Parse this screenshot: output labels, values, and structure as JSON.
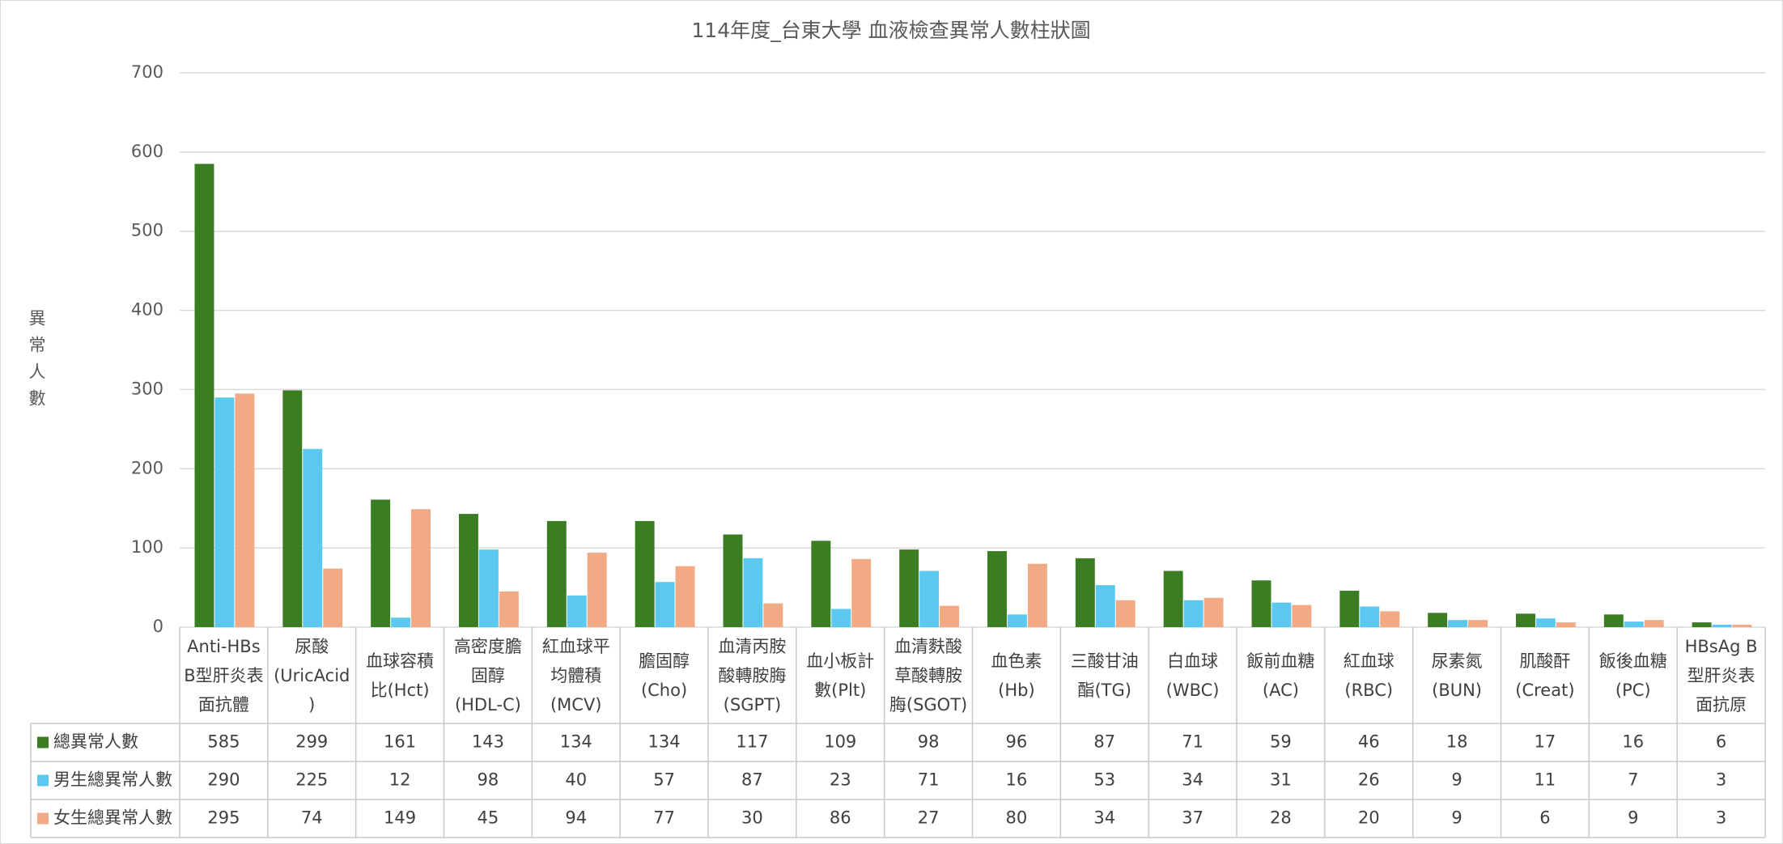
{
  "chart_data": {
    "type": "bar",
    "title": "114年度_台東大學 血液檢查異常人數柱狀圖",
    "y_label": "異常人數",
    "categories": [
      "Anti-HBs B型肝炎表面抗體",
      "尿酸(UricAcid)",
      "血球容積比(Hct)",
      "高密度膽固醇(HDL-C)",
      "紅血球平均體積(MCV)",
      "膽固醇(Cho)",
      "血清丙胺酸轉胺脢(SGPT)",
      "血小板計數(Plt)",
      "血清麩酸草酸轉胺脢(SGOT)",
      "血色素(Hb)",
      "三酸甘油酯(TG)",
      "白血球(WBC)",
      "飯前血糖(AC)",
      "紅血球(RBC)",
      "尿素氮(BUN)",
      "肌酸酐(Creat)",
      "飯後血糖(PC)",
      "HBsAg B型肝炎表面抗原"
    ],
    "series": [
      {
        "name": "總異常人數",
        "color": "#3a7d22",
        "values": [
          585,
          299,
          161,
          143,
          134,
          134,
          117,
          109,
          98,
          96,
          87,
          71,
          59,
          46,
          18,
          17,
          16,
          6
        ]
      },
      {
        "name": "男生總異常人數",
        "color": "#5bc8ef",
        "values": [
          290,
          225,
          12,
          98,
          40,
          57,
          87,
          23,
          71,
          16,
          53,
          34,
          31,
          26,
          9,
          11,
          7,
          3
        ]
      },
      {
        "name": "女生總異常人數",
        "color": "#f2aa84",
        "values": [
          295,
          74,
          149,
          45,
          94,
          77,
          30,
          86,
          27,
          80,
          34,
          37,
          28,
          20,
          9,
          6,
          9,
          3
        ]
      }
    ],
    "ylim": [
      0,
      700
    ],
    "yticks": [
      0,
      100,
      200,
      300,
      400,
      500,
      600,
      700
    ],
    "grid": true
  }
}
